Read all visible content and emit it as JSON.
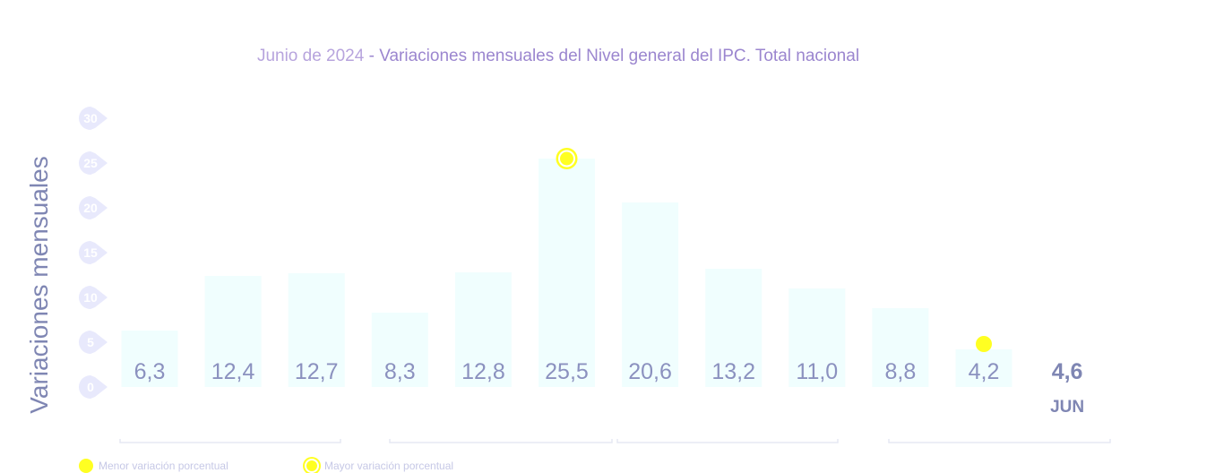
{
  "header": {
    "date": "Junio de 2024",
    "separator": "-",
    "title": "Variaciones mensuales del Nivel general del IPC. Total nacional"
  },
  "legend": {
    "min_label": "Menor variación porcentual",
    "max_label": "Mayor variación porcentual"
  },
  "colors": {
    "bar": "#f0fefe",
    "label": "#8b91bf",
    "current_label": "#7f86b3",
    "tick_badge": "#e8e9fc",
    "marker": "#ffff22",
    "title_date": "#b7a4dd",
    "title_main": "#9b86cf"
  },
  "chart_data": {
    "type": "bar",
    "ylabel": "Variaciones mensuales",
    "ylim": [
      0,
      30
    ],
    "yticks": [
      "0",
      "5",
      "10",
      "15",
      "20",
      "25",
      "30"
    ],
    "values": [
      6.3,
      12.4,
      12.7,
      8.3,
      12.8,
      25.5,
      20.6,
      13.2,
      11.0,
      8.8,
      4.2,
      4.6
    ],
    "value_labels": [
      "6,3",
      "12,4",
      "12,7",
      "8,3",
      "12,8",
      "25,5",
      "20,6",
      "13,2",
      "11,0",
      "8,8",
      "4,2",
      "4,6"
    ],
    "current_index": 11,
    "current_month": "JUN",
    "min_index": 10,
    "max_index": 5,
    "grid": false
  }
}
